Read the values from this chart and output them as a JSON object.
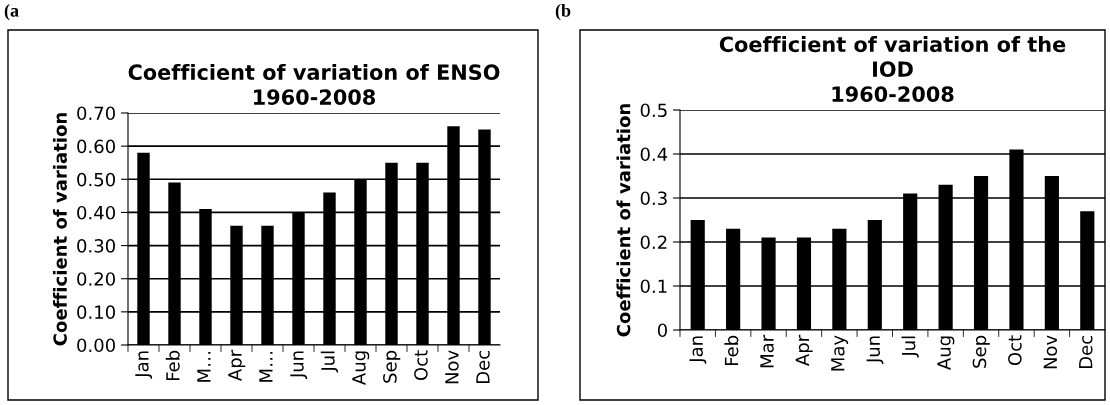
{
  "chart_data": [
    {
      "type": "bar",
      "title": "Coefficient of variation of ENSO\n1960-2008",
      "ylabel": "Coefficient of variation",
      "annotations": [
        "(a"
      ],
      "categories": [
        "Jan",
        "Feb",
        "M…",
        "Apr",
        "M…",
        "Jun",
        "Jul",
        "Aug",
        "Sep",
        "Oct",
        "Nov",
        "Dec"
      ],
      "values": [
        0.58,
        0.49,
        0.41,
        0.36,
        0.36,
        0.4,
        0.46,
        0.5,
        0.55,
        0.55,
        0.66,
        0.65
      ],
      "color": "#000000",
      "ylim": [
        0,
        0.7
      ],
      "yticks": [
        {
          "value": 0,
          "label": "0.00"
        },
        {
          "value": 0.1,
          "label": "0.10"
        },
        {
          "value": 0.2,
          "label": "0.20"
        },
        {
          "value": 0.3,
          "label": "0.30"
        },
        {
          "value": 0.4,
          "label": "0.40"
        },
        {
          "value": 0.5,
          "label": "0.50"
        },
        {
          "value": 0.6,
          "label": "0.60"
        },
        {
          "value": 0.7,
          "label": "0.70"
        }
      ],
      "grid": "y"
    },
    {
      "type": "bar",
      "title": "Coefficient of variation of the\nIOD\n1960-2008",
      "ylabel": "Coefficient of variation",
      "annotations": [
        "(b"
      ],
      "categories": [
        "Jan",
        "Feb",
        "Mar",
        "Apr",
        "May",
        "Jun",
        "Jul",
        "Aug",
        "Sep",
        "Oct",
        "Nov",
        "Dec"
      ],
      "values": [
        0.25,
        0.23,
        0.21,
        0.21,
        0.23,
        0.25,
        0.31,
        0.33,
        0.35,
        0.41,
        0.35,
        0.27
      ],
      "color": "#000000",
      "ylim": [
        0,
        0.5
      ],
      "yticks": [
        0,
        0.1,
        0.2,
        0.3,
        0.4,
        0.5
      ],
      "grid": "y"
    }
  ]
}
